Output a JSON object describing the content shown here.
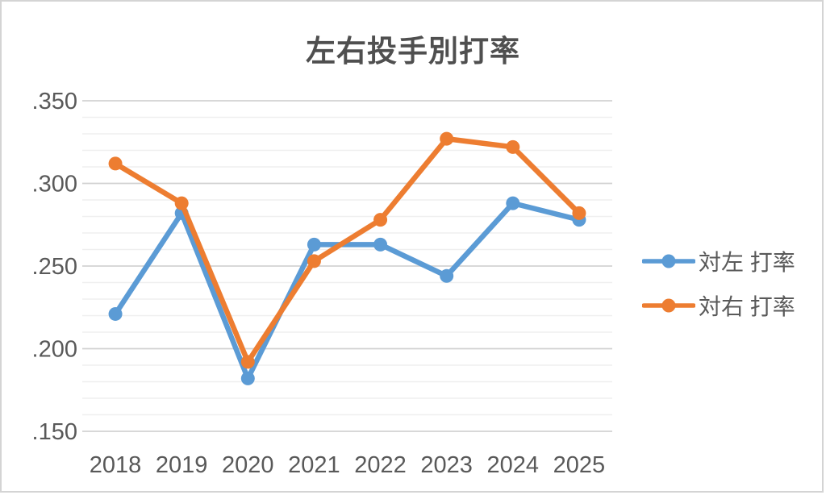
{
  "chart": {
    "title": "左右投手別打率"
  },
  "chart_data": {
    "type": "line",
    "title": "左右投手別打率",
    "categories": [
      "2018",
      "2019",
      "2020",
      "2021",
      "2022",
      "2023",
      "2024",
      "2025"
    ],
    "series": [
      {
        "name": "対左 打率",
        "color": "#5B9BD5",
        "values": [
          0.221,
          0.282,
          0.182,
          0.263,
          0.263,
          0.244,
          0.288,
          0.278
        ]
      },
      {
        "name": "対右 打率",
        "color": "#ED7D31",
        "values": [
          0.312,
          0.288,
          0.192,
          0.253,
          0.278,
          0.327,
          0.322,
          0.282
        ]
      }
    ],
    "xlabel": "",
    "ylabel": "",
    "ylim": [
      0.15,
      0.35
    ],
    "y_major_step": 0.05,
    "y_minor_step": 0.01,
    "y_tick_labels": [
      ".350",
      ".300",
      ".250",
      ".200",
      ".150"
    ],
    "grid": true,
    "minor_grid": true,
    "legend_position": "right",
    "marker": "circle"
  },
  "colors": {
    "grid_major": "#d2d2d2",
    "grid_minor": "#efefef",
    "axis_text": "#595959",
    "title_text": "#4f4f4f",
    "frame_border": "#d4d4d4"
  }
}
